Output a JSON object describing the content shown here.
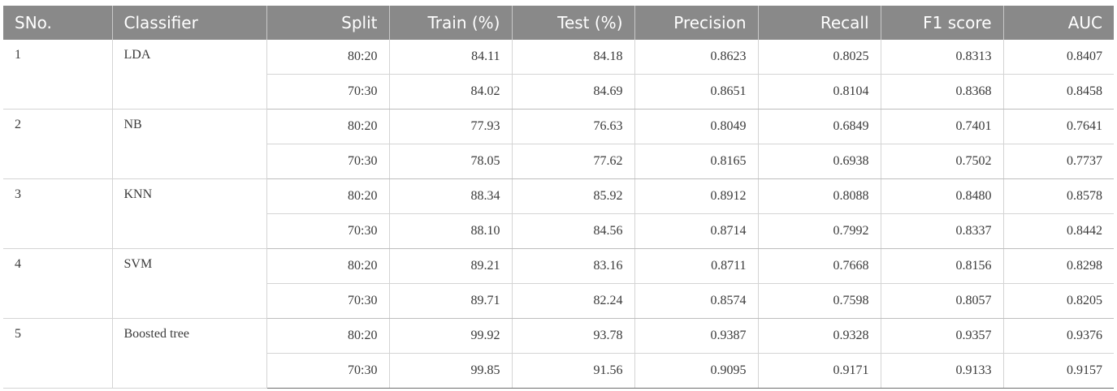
{
  "table": {
    "headers": [
      "SNo.",
      "Classifier",
      "Split",
      "Train (%)",
      "Test (%)",
      "Precision",
      "Recall",
      "F1 score",
      "AUC"
    ],
    "groups": [
      {
        "sno": "1",
        "classifier": "LDA",
        "rows": [
          [
            "80:20",
            "84.11",
            "84.18",
            "0.8623",
            "0.8025",
            "0.8313",
            "0.8407"
          ],
          [
            "70:30",
            "84.02",
            "84.69",
            "0.8651",
            "0.8104",
            "0.8368",
            "0.8458"
          ]
        ]
      },
      {
        "sno": "2",
        "classifier": "NB",
        "rows": [
          [
            "80:20",
            "77.93",
            "76.63",
            "0.8049",
            "0.6849",
            "0.7401",
            "0.7641"
          ],
          [
            "70:30",
            "78.05",
            "77.62",
            "0.8165",
            "0.6938",
            "0.7502",
            "0.7737"
          ]
        ]
      },
      {
        "sno": "3",
        "classifier": "KNN",
        "rows": [
          [
            "80:20",
            "88.34",
            "85.92",
            "0.8912",
            "0.8088",
            "0.8480",
            "0.8578"
          ],
          [
            "70:30",
            "88.10",
            "84.56",
            "0.8714",
            "0.7992",
            "0.8337",
            "0.8442"
          ]
        ]
      },
      {
        "sno": "4",
        "classifier": "SVM",
        "rows": [
          [
            "80:20",
            "89.21",
            "83.16",
            "0.8711",
            "0.7668",
            "0.8156",
            "0.8298"
          ],
          [
            "70:30",
            "89.71",
            "82.24",
            "0.8574",
            "0.7598",
            "0.8057",
            "0.8205"
          ]
        ]
      },
      {
        "sno": "5",
        "classifier": "Boosted tree",
        "rows": [
          [
            "80:20",
            "99.92",
            "93.78",
            "0.9387",
            "0.9328",
            "0.9357",
            "0.9376"
          ],
          [
            "70:30",
            "99.85",
            "91.56",
            "0.9095",
            "0.9171",
            "0.9133",
            "0.9157"
          ]
        ]
      }
    ]
  },
  "colors": {
    "header_bg": "#898989",
    "header_text": "#ffffff",
    "body_text": "#3a3a3a",
    "grid": "#d4d4d4"
  }
}
